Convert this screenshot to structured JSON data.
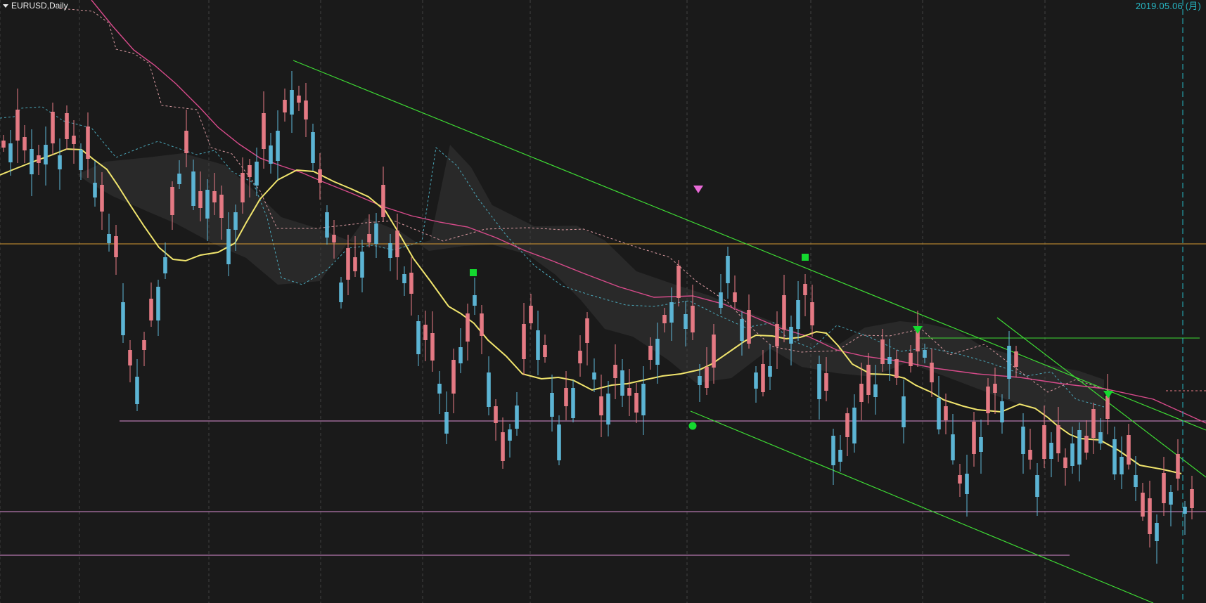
{
  "header": {
    "symbol_timeframe": "EURUSD,Daily",
    "date_label": "2019.05.06 (月)"
  },
  "colors": {
    "background": "#1a1a1a",
    "up_candle": "#e97c86",
    "down_candle": "#5eb8d8",
    "moving_average": "#f1e56d",
    "long_moving_average": "#d84b8b",
    "trend_line": "#3edc34",
    "support_line": "#d98ed3",
    "price_level": "#d69a31",
    "date_text": "#27b6c3",
    "grid": "#666666",
    "cloud": "#3b3b3b"
  },
  "chart_data": {
    "type": "candlestick",
    "title": "EURUSD,Daily",
    "date_label": "2019.05.06 (月)",
    "grid": true,
    "series": [
      {
        "name": "EURUSD Daily candles",
        "direction_sequence": [
          "up",
          "down",
          "up",
          "up",
          "down",
          "up",
          "down",
          "up",
          "down",
          "up",
          "up",
          "down",
          "up",
          "down",
          "up",
          "down",
          "up",
          "down",
          "up",
          "down",
          "up",
          "up",
          "down",
          "down",
          "up",
          "down",
          "up",
          "down",
          "up",
          "down",
          "up",
          "up",
          "down",
          "down",
          "up",
          "up",
          "down",
          "up",
          "down",
          "down"
        ]
      },
      {
        "name": "short moving average",
        "style": "yellow line"
      },
      {
        "name": "long moving average",
        "style": "magenta line"
      }
    ],
    "markers": [
      {
        "type": "green-square"
      },
      {
        "type": "magenta-down-triangle"
      },
      {
        "type": "green-circle"
      },
      {
        "type": "green-square"
      },
      {
        "type": "green-down-triangle"
      },
      {
        "type": "green-down-triangle"
      }
    ]
  }
}
